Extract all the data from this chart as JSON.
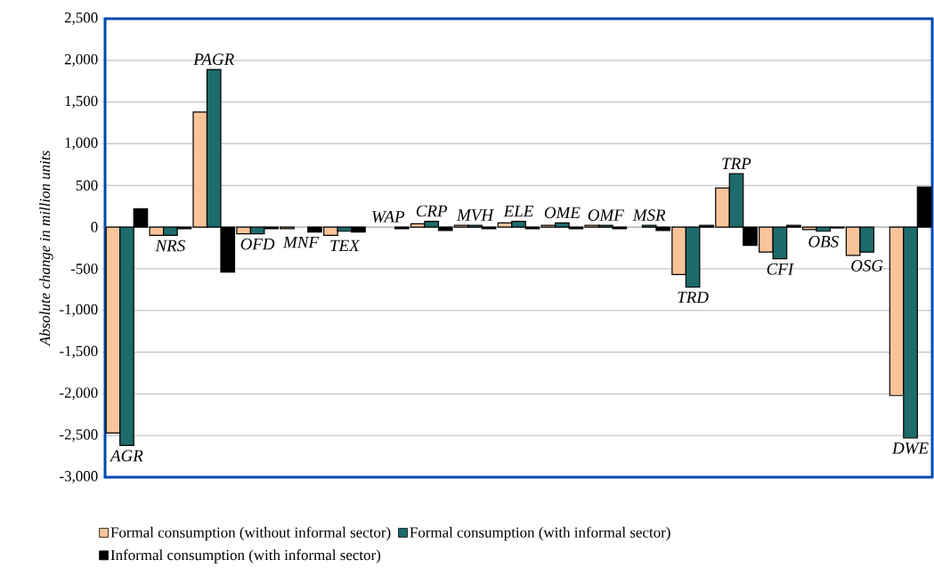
{
  "chart_data": {
    "type": "bar",
    "ylabel": "Absolute change in million units",
    "categories": [
      "AGR",
      "NRS",
      "PAGR",
      "OFD",
      "MNF",
      "TEX",
      "WAP",
      "CRP",
      "MVH",
      "ELE",
      "OME",
      "OMF",
      "MSR",
      "TRD",
      "TRP",
      "CFI",
      "OBS",
      "OSG",
      "DWE"
    ],
    "series": [
      {
        "name": "Formal consumption (without informal sector)",
        "color": "#f9c49a",
        "values": [
          -2470,
          -100,
          1380,
          -80,
          -20,
          -100,
          null,
          40,
          20,
          50,
          20,
          20,
          null,
          -570,
          470,
          -300,
          -30,
          -340,
          -2020
        ]
      },
      {
        "name": "Formal consumption (with informal sector)",
        "color": "#1e6b6b",
        "values": [
          -2620,
          -100,
          1890,
          -80,
          null,
          -50,
          null,
          70,
          20,
          70,
          50,
          20,
          20,
          -720,
          640,
          -380,
          -50,
          -300,
          -2530
        ]
      },
      {
        "name": "Informal consumption (with informal sector)",
        "color": "#000000",
        "values": [
          220,
          -20,
          -540,
          -20,
          -60,
          -60,
          -20,
          -40,
          -20,
          -20,
          -20,
          -20,
          -40,
          20,
          -220,
          20,
          -10,
          null,
          480
        ]
      }
    ],
    "ylim": [
      -3000,
      2500
    ],
    "yticks": [
      {
        "value": -3000,
        "label": "-3,000"
      },
      {
        "value": -2500,
        "label": "-2,500"
      },
      {
        "value": -2000,
        "label": "-2,000"
      },
      {
        "value": -1500,
        "label": "-1,500"
      },
      {
        "value": -1000,
        "label": "-1,000"
      },
      {
        "value": -500,
        "label": "-500"
      },
      {
        "value": 0,
        "label": "0"
      },
      {
        "value": 500,
        "label": "500"
      },
      {
        "value": 1000,
        "label": "1,000"
      },
      {
        "value": 1500,
        "label": "1,500"
      },
      {
        "value": 2000,
        "label": "2,000"
      },
      {
        "value": 2500,
        "label": "2,500"
      }
    ],
    "grid": true,
    "legend": "bottom"
  }
}
